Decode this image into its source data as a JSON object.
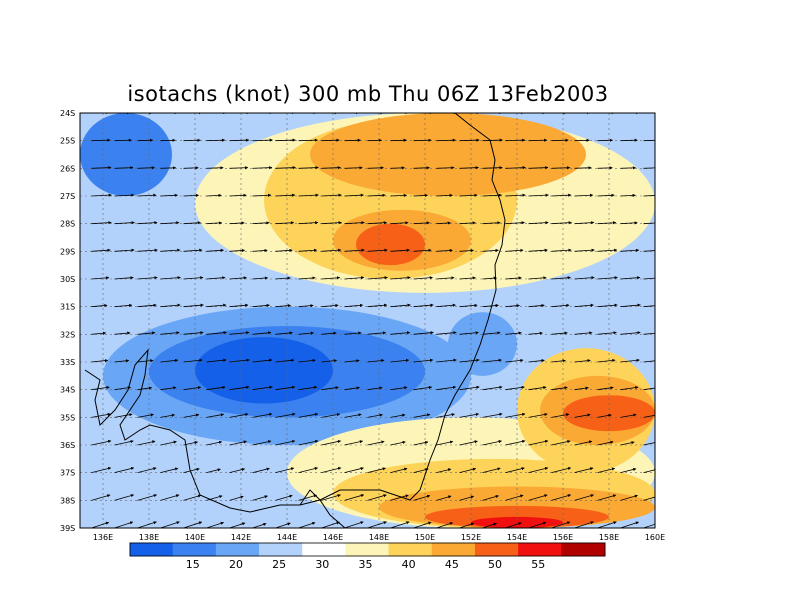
{
  "title": "isotachs (knot) 300 mb Thu 06Z 13Feb2003",
  "map": {
    "lon_range": [
      135,
      160
    ],
    "lat_range": [
      -39,
      -24
    ],
    "lat_labels": [
      "24S",
      "25S",
      "26S",
      "27S",
      "28S",
      "29S",
      "30S",
      "31S",
      "32S",
      "33S",
      "34S",
      "35S",
      "36S",
      "37S",
      "38S",
      "39S"
    ],
    "lon_labels": [
      "136E",
      "138E",
      "140E",
      "142E",
      "144E",
      "146E",
      "148E",
      "150E",
      "152E",
      "154E",
      "156E",
      "158E",
      "160E"
    ]
  },
  "colorbar": {
    "colors": [
      "#1560e8",
      "#3b82f0",
      "#6aa6f6",
      "#b3d2fb",
      "#ffffff",
      "#fdf5b8",
      "#fdd35a",
      "#fba935",
      "#f76117",
      "#f01010",
      "#b00000"
    ],
    "labels": [
      "15",
      "20",
      "25",
      "30",
      "35",
      "40",
      "45",
      "50",
      "55"
    ]
  },
  "regions": [
    {
      "name": "band-30-low",
      "color": "#b3d2fb",
      "lon": [
        136,
        160
      ],
      "lat": [
        -38.8,
        -29.8
      ]
    },
    {
      "name": "band-25-mid",
      "color": "#6aa6f6",
      "lon": [
        136,
        152
      ],
      "lat": [
        -36,
        -31
      ]
    },
    {
      "name": "band-20-core",
      "color": "#3b82f0",
      "lon": [
        138,
        150
      ],
      "lat": [
        -35,
        -31.7
      ]
    },
    {
      "name": "band-15-core",
      "color": "#1560e8",
      "lon": [
        140,
        146
      ],
      "lat": [
        -34.5,
        -32.1
      ]
    },
    {
      "name": "band-25-east",
      "color": "#6aa6f6",
      "lon": [
        151,
        154
      ],
      "lat": [
        -33.5,
        -31.2
      ]
    },
    {
      "name": "band-20-nw",
      "color": "#3b82f0",
      "lon": [
        135,
        139
      ],
      "lat": [
        -27,
        -24
      ]
    },
    {
      "name": "band-40-north",
      "color": "#fdf5b8",
      "lon": [
        140,
        160
      ],
      "lat": [
        -30.5,
        -24
      ]
    },
    {
      "name": "band-45-north",
      "color": "#fdd35a",
      "lon": [
        143,
        154
      ],
      "lat": [
        -30,
        -24.3
      ]
    },
    {
      "name": "band-50-north",
      "color": "#fba935",
      "lon": [
        146,
        152
      ],
      "lat": [
        -29.7,
        -27.5
      ]
    },
    {
      "name": "band-50-top",
      "color": "#fba935",
      "lon": [
        145,
        157
      ],
      "lat": [
        -27,
        -24
      ]
    },
    {
      "name": "band-55-north",
      "color": "#f76117",
      "lon": [
        147,
        150
      ],
      "lat": [
        -29.5,
        -28
      ]
    },
    {
      "name": "band-40-south",
      "color": "#fdf5b8",
      "lon": [
        144,
        160
      ],
      "lat": [
        -39,
        -35
      ]
    },
    {
      "name": "band-45-south",
      "color": "#fdd35a",
      "lon": [
        146,
        160
      ],
      "lat": [
        -39,
        -36.5
      ]
    },
    {
      "name": "band-50-south",
      "color": "#fba935",
      "lon": [
        148,
        160
      ],
      "lat": [
        -39,
        -37.5
      ]
    },
    {
      "name": "band-55-south",
      "color": "#f76117",
      "lon": [
        150,
        158
      ],
      "lat": [
        -39,
        -38.2
      ]
    },
    {
      "name": "band-60-south",
      "color": "#f01010",
      "lon": [
        152,
        156
      ],
      "lat": [
        -39,
        -38.6
      ]
    },
    {
      "name": "band-45-east",
      "color": "#fdd35a",
      "lon": [
        154,
        160
      ],
      "lat": [
        -37,
        -32.5
      ]
    },
    {
      "name": "band-50-east",
      "color": "#fba935",
      "lon": [
        155,
        160
      ],
      "lat": [
        -36,
        -33.5
      ]
    },
    {
      "name": "band-55-east",
      "color": "#f76117",
      "lon": [
        156,
        160
      ],
      "lat": [
        -35.5,
        -34.2
      ]
    }
  ],
  "vectors": {
    "lon_step": 1,
    "lat_step": 1
  }
}
